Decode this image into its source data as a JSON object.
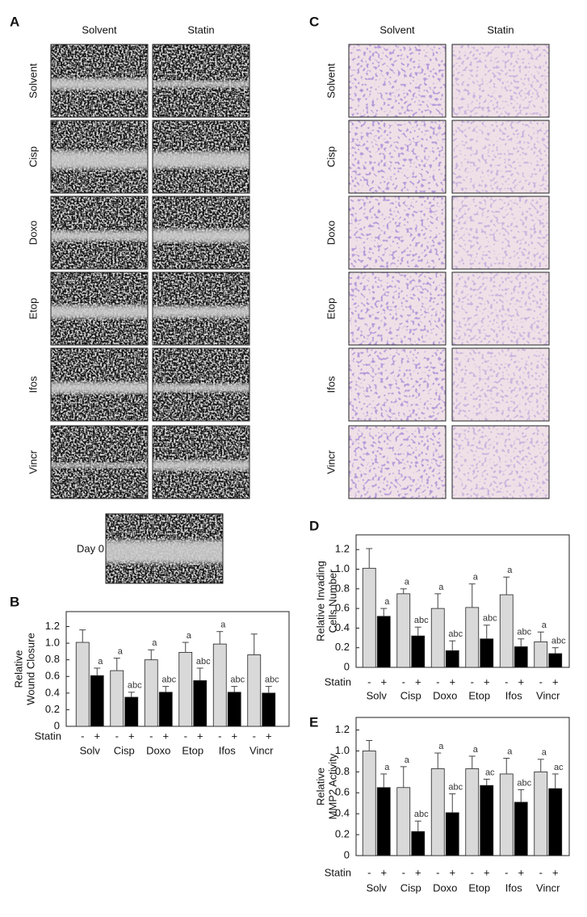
{
  "panels": {
    "A": {
      "label": "A",
      "columns": [
        "Solvent",
        "Statin"
      ],
      "rows": [
        "Solvent",
        "Cisp",
        "Doxo",
        "Etop",
        "Ifos",
        "Vincr"
      ],
      "day0": "Day 0"
    },
    "C": {
      "label": "C",
      "columns": [
        "Solvent",
        "Statin"
      ],
      "rows": [
        "Solvent",
        "Cisp",
        "Doxo",
        "Etop",
        "Ifos",
        "Vincr"
      ]
    }
  },
  "chart_data": [
    {
      "type": "bar",
      "panel_label": "B",
      "ylabel": [
        "Relative",
        "Wound Closure"
      ],
      "group_label": "Statin",
      "categories": [
        "Solv",
        "Cisp",
        "Doxo",
        "Etop",
        "Ifos",
        "Vincr"
      ],
      "series": [
        {
          "name": "-",
          "color": "#d9d9d9",
          "values": [
            1.01,
            0.67,
            0.8,
            0.89,
            0.99,
            0.86
          ],
          "errors": [
            0.15,
            0.15,
            0.12,
            0.12,
            0.15,
            0.25
          ],
          "annotations": [
            null,
            "a",
            "a",
            "a",
            "a",
            null
          ]
        },
        {
          "name": "+",
          "color": "#000000",
          "values": [
            0.61,
            0.35,
            0.41,
            0.55,
            0.41,
            0.4
          ],
          "errors": [
            0.09,
            0.06,
            0.07,
            0.15,
            0.07,
            0.08
          ],
          "annotations": [
            "a",
            "abc",
            "abc",
            "abc",
            "abc",
            "abc"
          ]
        }
      ],
      "ylim": [
        0,
        1.38
      ],
      "yticks": [
        0,
        0.2,
        0.4,
        0.6,
        0.8,
        {
          "value": 1,
          "label": "1.0"
        },
        1.2
      ]
    },
    {
      "type": "bar",
      "panel_label": "D",
      "ylabel": [
        "Relative Invading",
        "Cells Number"
      ],
      "group_label": "Statin",
      "categories": [
        "Solv",
        "Cisp",
        "Doxo",
        "Etop",
        "Ifos",
        "Vincr"
      ],
      "series": [
        {
          "name": "-",
          "color": "#d9d9d9",
          "values": [
            1.01,
            0.75,
            0.6,
            0.61,
            0.74,
            0.26
          ],
          "errors": [
            0.2,
            0.05,
            0.15,
            0.24,
            0.18,
            0.1
          ],
          "annotations": [
            null,
            "a",
            "a",
            "a",
            "a",
            "a"
          ]
        },
        {
          "name": "+",
          "color": "#000000",
          "values": [
            0.52,
            0.32,
            0.17,
            0.29,
            0.21,
            0.14
          ],
          "errors": [
            0.08,
            0.09,
            0.1,
            0.14,
            0.08,
            0.06
          ],
          "annotations": [
            "a",
            "abc",
            "abc",
            "abc",
            "abc",
            "abc"
          ]
        }
      ],
      "ylim": [
        0,
        1.35
      ],
      "yticks": [
        0,
        0.2,
        0.4,
        0.6,
        0.8,
        {
          "value": 1,
          "label": "1.0"
        },
        1.2
      ]
    },
    {
      "type": "bar",
      "panel_label": "E",
      "ylabel": [
        "Relative",
        "MMP2 Activity"
      ],
      "group_label": "Statin",
      "categories": [
        "Solv",
        "Cisp",
        "Doxo",
        "Etop",
        "Ifos",
        "Vincr"
      ],
      "series": [
        {
          "name": "-",
          "color": "#d9d9d9",
          "values": [
            1.0,
            0.65,
            0.83,
            0.83,
            0.78,
            0.8
          ],
          "errors": [
            0.1,
            0.2,
            0.15,
            0.12,
            0.15,
            0.12
          ],
          "annotations": [
            null,
            "a",
            "a",
            "a",
            "a",
            "a"
          ]
        },
        {
          "name": "+",
          "color": "#000000",
          "values": [
            0.65,
            0.23,
            0.41,
            0.67,
            0.51,
            0.64
          ],
          "errors": [
            0.13,
            0.1,
            0.18,
            0.06,
            0.12,
            0.14
          ],
          "annotations": [
            "a",
            "abc",
            "abc",
            "ac",
            "abc",
            "ac"
          ]
        }
      ],
      "ylim": [
        0,
        1.32
      ],
      "yticks": [
        0,
        0.2,
        0.4,
        0.6,
        0.8,
        {
          "value": 1,
          "label": "1.0"
        },
        1.2
      ]
    }
  ]
}
